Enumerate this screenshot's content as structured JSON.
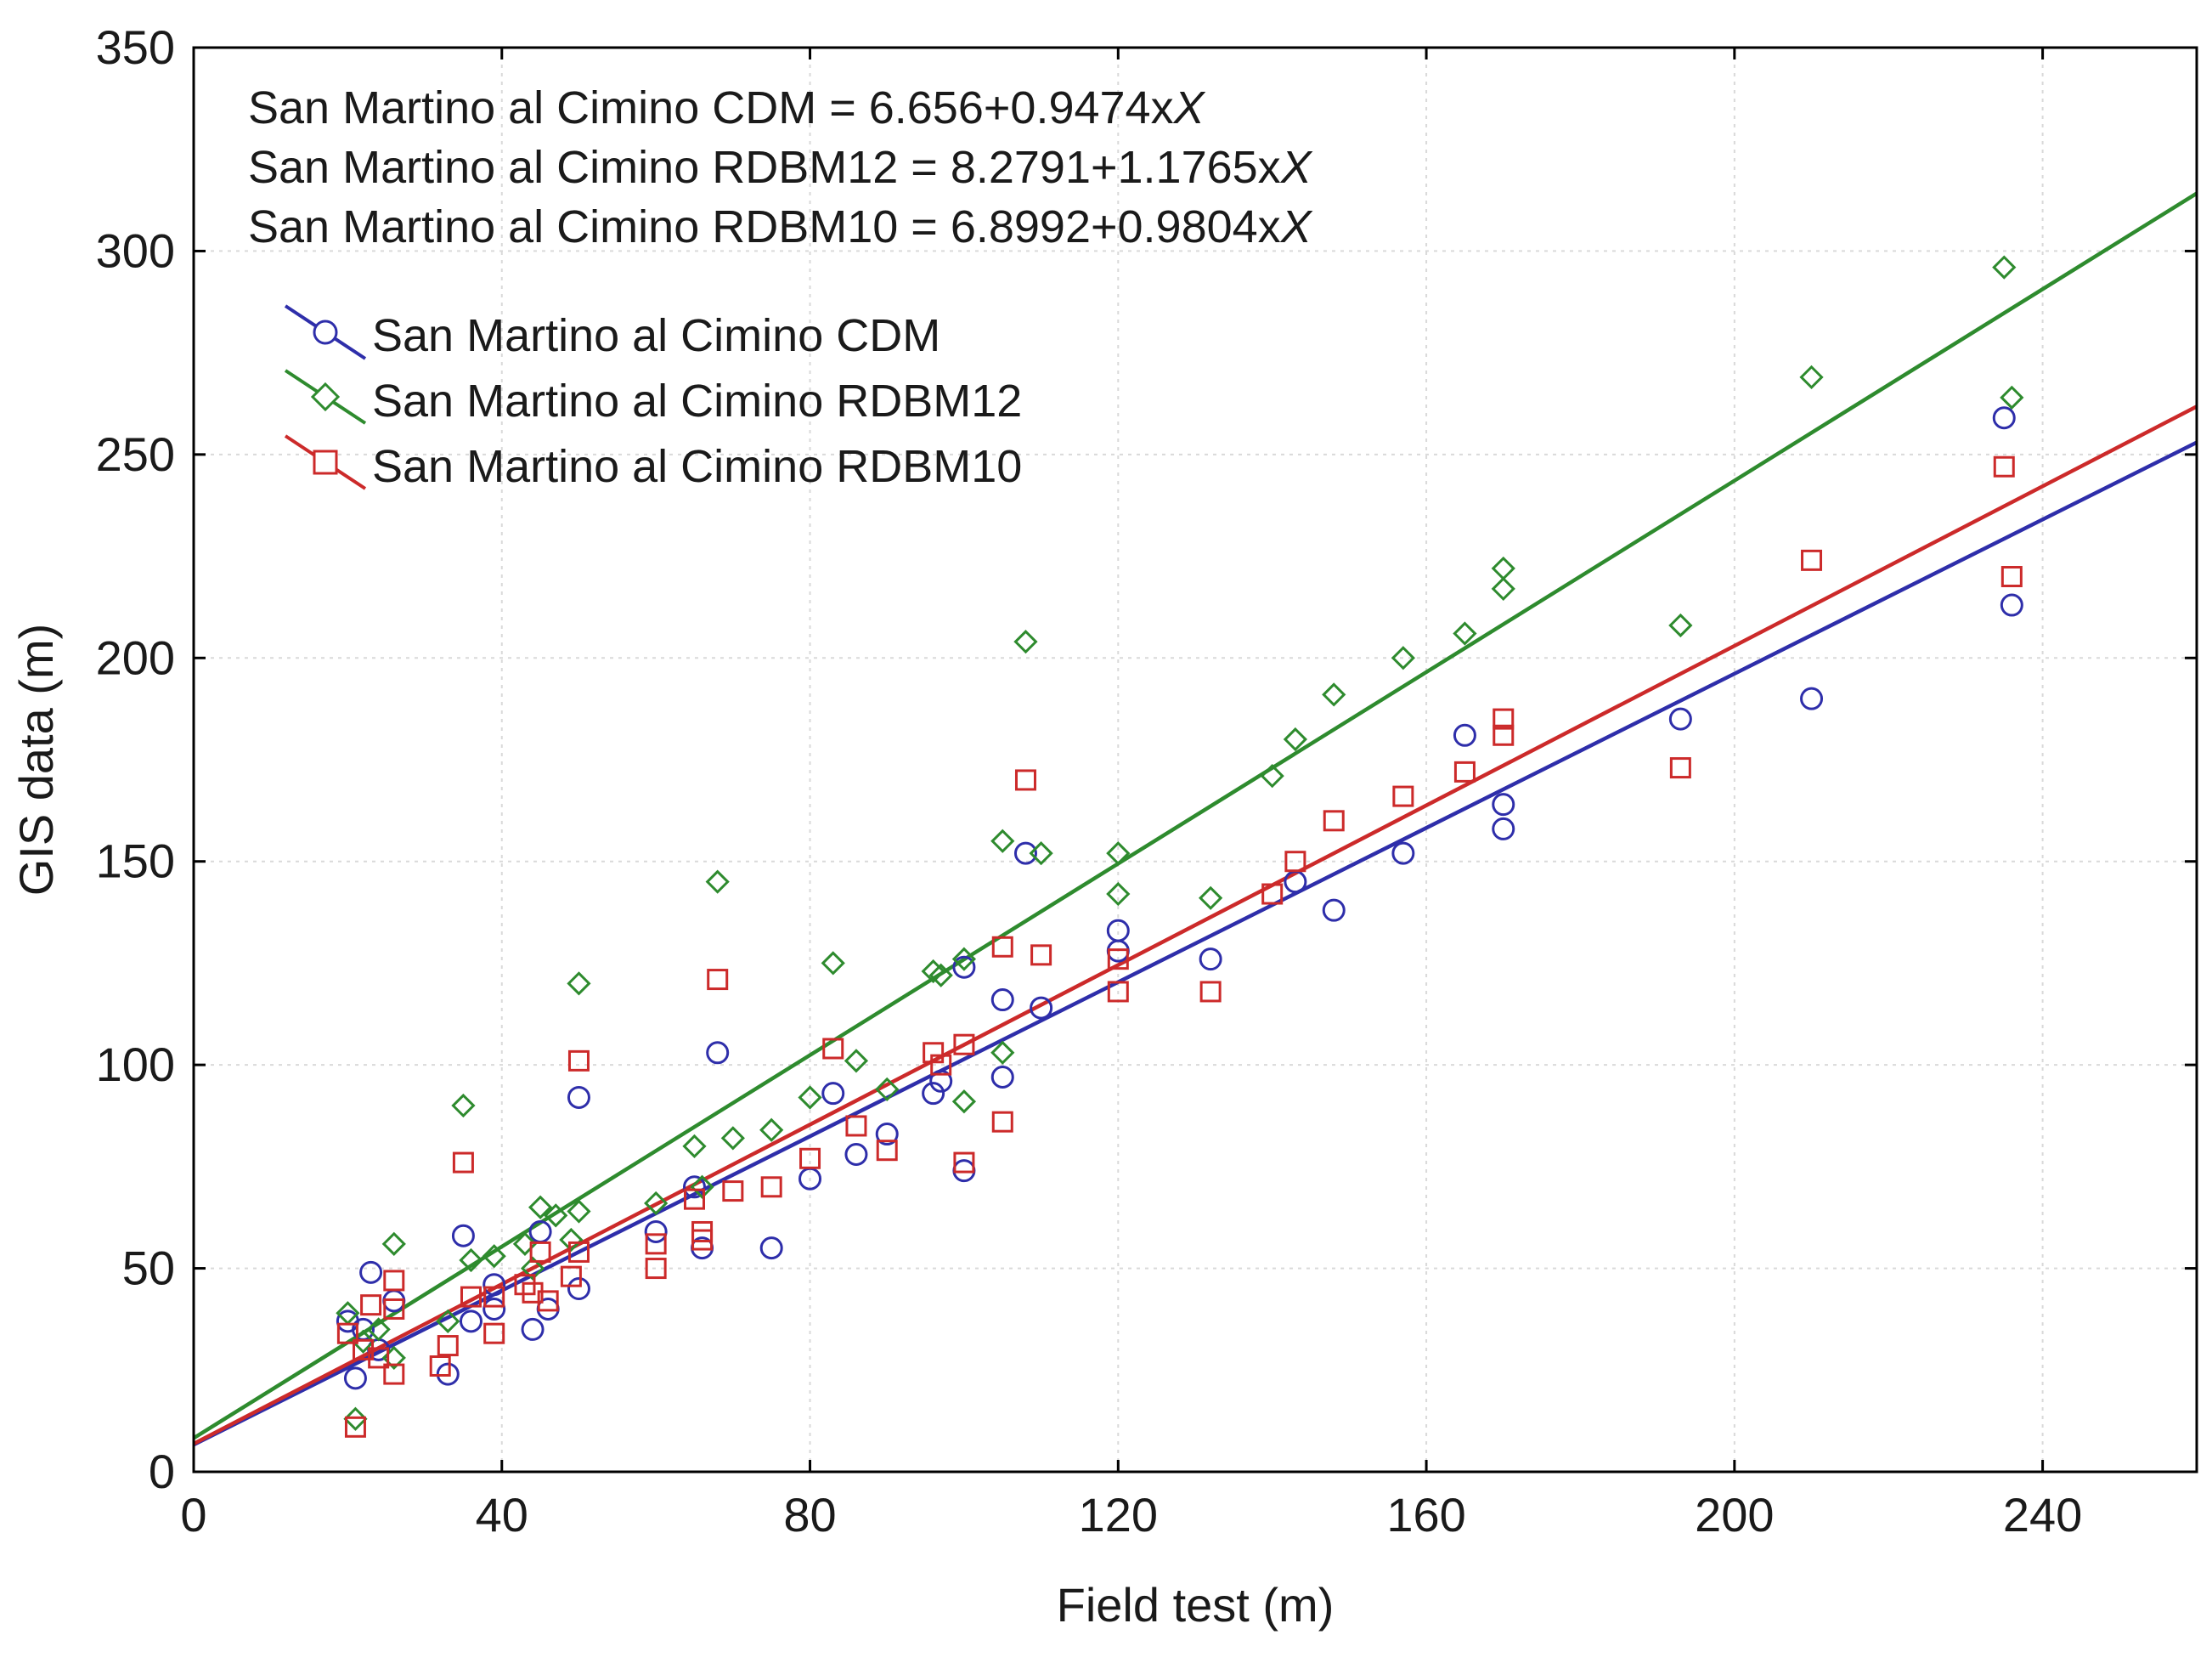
{
  "chart_data": {
    "type": "scatter",
    "xlabel": "Field test (m)",
    "ylabel": "GIS data (m)",
    "xlim": [
      0,
      260
    ],
    "ylim": [
      0,
      350
    ],
    "x_ticks": [
      0,
      40,
      80,
      120,
      160,
      200,
      240
    ],
    "y_ticks": [
      0,
      50,
      100,
      150,
      200,
      250,
      300,
      350
    ],
    "grid": true,
    "legend_position": "top-left",
    "equations": [
      {
        "label": "San Martino al Cimino CDM = 6.656+0.9474x",
        "var": "X"
      },
      {
        "label": "San Martino al Cimino RDBM12 = 8.2791+1.1765x",
        "var": "X"
      },
      {
        "label": "San Martino al Cimino RDBM10 = 6.8992+0.9804x",
        "var": "X"
      }
    ],
    "series": [
      {
        "name": "San Martino al Cimino CDM",
        "marker": "circle",
        "color": "#2e2eaa",
        "fit": {
          "intercept": 6.656,
          "slope": 0.9474
        },
        "points": [
          [
            20,
            37
          ],
          [
            21,
            23
          ],
          [
            23,
            49
          ],
          [
            22,
            35
          ],
          [
            24,
            30
          ],
          [
            26,
            42
          ],
          [
            33,
            24
          ],
          [
            35,
            58
          ],
          [
            36,
            37
          ],
          [
            39,
            40
          ],
          [
            39,
            46
          ],
          [
            44,
            35
          ],
          [
            45,
            59
          ],
          [
            46,
            40
          ],
          [
            50,
            45
          ],
          [
            50,
            92
          ],
          [
            60,
            59
          ],
          [
            65,
            70
          ],
          [
            66,
            55
          ],
          [
            68,
            103
          ],
          [
            75,
            55
          ],
          [
            80,
            72
          ],
          [
            83,
            93
          ],
          [
            86,
            78
          ],
          [
            90,
            83
          ],
          [
            96,
            93
          ],
          [
            97,
            96
          ],
          [
            100,
            74
          ],
          [
            100,
            124
          ],
          [
            105,
            97
          ],
          [
            105,
            116
          ],
          [
            108,
            152
          ],
          [
            110,
            114
          ],
          [
            120,
            133
          ],
          [
            120,
            128
          ],
          [
            132,
            126
          ],
          [
            143,
            145
          ],
          [
            148,
            138
          ],
          [
            157,
            152
          ],
          [
            165,
            181
          ],
          [
            170,
            164
          ],
          [
            170,
            158
          ],
          [
            193,
            185
          ],
          [
            210,
            190
          ],
          [
            235,
            259
          ],
          [
            236,
            213
          ]
        ]
      },
      {
        "name": "San Martino al Cimino RDBM12",
        "marker": "diamond",
        "color": "#2e8b2e",
        "fit": {
          "intercept": 8.2791,
          "slope": 1.1765
        },
        "points": [
          [
            20,
            39
          ],
          [
            21,
            13
          ],
          [
            22,
            32
          ],
          [
            24,
            35
          ],
          [
            26,
            56
          ],
          [
            26,
            28
          ],
          [
            33,
            37
          ],
          [
            35,
            90
          ],
          [
            36,
            52
          ],
          [
            39,
            53
          ],
          [
            43,
            56
          ],
          [
            44,
            50
          ],
          [
            45,
            65
          ],
          [
            47,
            63
          ],
          [
            49,
            57
          ],
          [
            50,
            64
          ],
          [
            50,
            120
          ],
          [
            60,
            66
          ],
          [
            65,
            80
          ],
          [
            66,
            70
          ],
          [
            68,
            145
          ],
          [
            70,
            82
          ],
          [
            75,
            84
          ],
          [
            80,
            92
          ],
          [
            83,
            125
          ],
          [
            86,
            101
          ],
          [
            90,
            94
          ],
          [
            96,
            123
          ],
          [
            97,
            122
          ],
          [
            100,
            91
          ],
          [
            100,
            126
          ],
          [
            105,
            103
          ],
          [
            105,
            155
          ],
          [
            108,
            204
          ],
          [
            110,
            152
          ],
          [
            120,
            152
          ],
          [
            120,
            142
          ],
          [
            132,
            141
          ],
          [
            140,
            171
          ],
          [
            143,
            180
          ],
          [
            148,
            191
          ],
          [
            157,
            200
          ],
          [
            165,
            206
          ],
          [
            170,
            222
          ],
          [
            170,
            217
          ],
          [
            193,
            208
          ],
          [
            210,
            269
          ],
          [
            235,
            296
          ],
          [
            236,
            264
          ]
        ]
      },
      {
        "name": "San Martino al Cimino RDBM10",
        "marker": "square",
        "color": "#cc2a2a",
        "fit": {
          "intercept": 6.8992,
          "slope": 0.9804
        },
        "points": [
          [
            20,
            34
          ],
          [
            21,
            11
          ],
          [
            22,
            30
          ],
          [
            23,
            41
          ],
          [
            24,
            28
          ],
          [
            26,
            47
          ],
          [
            26,
            40
          ],
          [
            26,
            24
          ],
          [
            32,
            26
          ],
          [
            33,
            31
          ],
          [
            35,
            76
          ],
          [
            36,
            43
          ],
          [
            39,
            34
          ],
          [
            39,
            43
          ],
          [
            43,
            46
          ],
          [
            44,
            44
          ],
          [
            45,
            54
          ],
          [
            46,
            42
          ],
          [
            49,
            48
          ],
          [
            50,
            54
          ],
          [
            50,
            101
          ],
          [
            60,
            50
          ],
          [
            60,
            56
          ],
          [
            65,
            67
          ],
          [
            66,
            57
          ],
          [
            66,
            59
          ],
          [
            68,
            121
          ],
          [
            70,
            69
          ],
          [
            75,
            70
          ],
          [
            80,
            77
          ],
          [
            83,
            104
          ],
          [
            86,
            85
          ],
          [
            90,
            79
          ],
          [
            96,
            103
          ],
          [
            97,
            100
          ],
          [
            100,
            105
          ],
          [
            100,
            76
          ],
          [
            105,
            86
          ],
          [
            105,
            129
          ],
          [
            108,
            170
          ],
          [
            110,
            127
          ],
          [
            120,
            126
          ],
          [
            120,
            118
          ],
          [
            132,
            118
          ],
          [
            140,
            142
          ],
          [
            143,
            150
          ],
          [
            148,
            160
          ],
          [
            157,
            166
          ],
          [
            165,
            172
          ],
          [
            170,
            185
          ],
          [
            170,
            181
          ],
          [
            193,
            173
          ],
          [
            210,
            224
          ],
          [
            235,
            247
          ],
          [
            236,
            220
          ]
        ]
      }
    ]
  }
}
